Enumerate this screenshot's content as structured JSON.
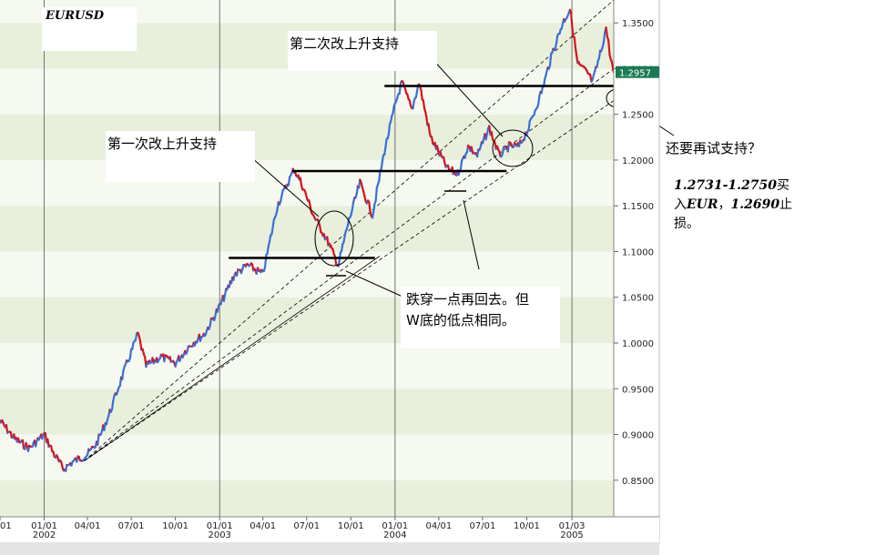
{
  "chart_data": {
    "type": "line",
    "title": "EURUSD",
    "ylim": [
      0.81,
      1.375
    ],
    "xlim": [
      "2001-10-01",
      "2005-03-31"
    ],
    "y_ticks": [
      "1.3500",
      "1.3000",
      "1.2500",
      "1.2000",
      "1.1500",
      "1.1000",
      "1.0500",
      "1.0000",
      "0.9500",
      "0.9000",
      "0.8500"
    ],
    "x_ticks": [
      {
        "label": "01",
        "date": "2001-10-01"
      },
      {
        "label": "01/01",
        "year": "2002",
        "date": "2002-01-01"
      },
      {
        "label": "04/01",
        "date": "2002-04-01"
      },
      {
        "label": "07/01",
        "date": "2002-07-01"
      },
      {
        "label": "10/01",
        "date": "2002-10-01"
      },
      {
        "label": "01/01",
        "year": "2003",
        "date": "2003-01-01"
      },
      {
        "label": "04/01",
        "date": "2003-04-01"
      },
      {
        "label": "07/01",
        "date": "2003-07-01"
      },
      {
        "label": "10/01",
        "date": "2003-10-01"
      },
      {
        "label": "01/01",
        "year": "2004",
        "date": "2004-01-01"
      },
      {
        "label": "04/01",
        "date": "2004-04-01"
      },
      {
        "label": "07/01",
        "date": "2004-07-01"
      },
      {
        "label": "10/01",
        "date": "2004-10-01"
      },
      {
        "label": "01/03",
        "year": "2005",
        "date": "2005-01-03"
      }
    ],
    "series": [
      {
        "color": "#d8121c",
        "points": [
          [
            "2001-10-01",
            0.915
          ],
          [
            "2001-11-01",
            0.895
          ],
          [
            "2001-12-01",
            0.885
          ],
          [
            "2002-01-01",
            0.9
          ],
          [
            "2002-01-20",
            0.88
          ],
          [
            "2002-02-10",
            0.862
          ],
          [
            "2002-03-01",
            0.87
          ],
          [
            "2002-04-01",
            0.878
          ],
          [
            "2002-04-20",
            0.89
          ],
          [
            "2002-05-15",
            0.92
          ],
          [
            "2002-06-10",
            0.96
          ],
          [
            "2002-07-01",
            0.99
          ],
          [
            "2002-07-15",
            1.01
          ],
          [
            "2002-08-01",
            0.975
          ],
          [
            "2002-09-01",
            0.985
          ],
          [
            "2002-10-01",
            0.978
          ],
          [
            "2002-11-01",
            0.998
          ],
          [
            "2002-12-01",
            1.01
          ],
          [
            "2003-01-01",
            1.04
          ],
          [
            "2003-02-01",
            1.075
          ],
          [
            "2003-03-01",
            1.085
          ],
          [
            "2003-04-01",
            1.075
          ],
          [
            "2003-05-01",
            1.15
          ],
          [
            "2003-06-05",
            1.19
          ],
          [
            "2003-06-20",
            1.175
          ],
          [
            "2003-07-15",
            1.14
          ],
          [
            "2003-08-15",
            1.11
          ],
          [
            "2003-09-05",
            1.085
          ],
          [
            "2003-09-25",
            1.13
          ],
          [
            "2003-10-20",
            1.175
          ],
          [
            "2003-11-15",
            1.14
          ],
          [
            "2003-12-10",
            1.21
          ],
          [
            "2004-01-01",
            1.26
          ],
          [
            "2004-01-15",
            1.285
          ],
          [
            "2004-02-05",
            1.255
          ],
          [
            "2004-02-20",
            1.285
          ],
          [
            "2004-03-15",
            1.225
          ],
          [
            "2004-04-20",
            1.19
          ],
          [
            "2004-05-10",
            1.185
          ],
          [
            "2004-06-01",
            1.215
          ],
          [
            "2004-06-20",
            1.205
          ],
          [
            "2004-07-15",
            1.235
          ],
          [
            "2004-08-05",
            1.205
          ],
          [
            "2004-08-25",
            1.215
          ],
          [
            "2004-09-15",
            1.215
          ],
          [
            "2004-10-05",
            1.235
          ],
          [
            "2004-11-01",
            1.275
          ],
          [
            "2004-11-25",
            1.32
          ],
          [
            "2004-12-15",
            1.35
          ],
          [
            "2004-12-30",
            1.365
          ],
          [
            "2005-01-15",
            1.305
          ],
          [
            "2005-02-05",
            1.295
          ],
          [
            "2005-02-15",
            1.285
          ],
          [
            "2005-03-05",
            1.32
          ],
          [
            "2005-03-15",
            1.345
          ],
          [
            "2005-03-25",
            1.31
          ],
          [
            "2005-03-31",
            1.296
          ]
        ]
      }
    ],
    "price_label": "1.2957",
    "annotations": [
      "第一次改上升支持",
      "第二次改上升支持",
      "跌穿一点再回去。但",
      "W底的低点相同。",
      "还要再试支持？",
      "1.2731-1.2750",
      "买",
      "入",
      "EUR",
      "，",
      "1.2690",
      "止",
      "损。"
    ],
    "horizontal_supports": [
      {
        "from": "2003-01-20",
        "to": "2003-11-20",
        "y": 1.093
      },
      {
        "from": "2003-06-01",
        "to": "2004-08-20",
        "y": 1.188
      },
      {
        "from": "2003-12-10",
        "to": "2005-03-31",
        "y": 1.281
      }
    ],
    "trendlines": [
      {
        "from": [
          "2002-03-25",
          0.871
        ],
        "to": [
          "2003-11-30",
          1.095
        ],
        "style": "solid"
      },
      {
        "from": [
          "2002-03-25",
          0.871
        ],
        "to": [
          "2005-03-31",
          1.265
        ],
        "style": "dashed"
      },
      {
        "from": [
          "2002-03-25",
          0.871
        ],
        "to": [
          "2005-03-31",
          1.3
        ],
        "style": "dashed"
      },
      {
        "from": [
          "2002-03-25",
          0.871
        ],
        "to": [
          "2005-03-31",
          1.375
        ],
        "style": "dashed"
      }
    ],
    "grid": true
  },
  "colors": {
    "band_dark": "#e8f0dc",
    "band_light": "#f5f9ef",
    "price_label_bg": "#1b7a52",
    "price_up": "#3a6fd8",
    "price_down": "#d8121c"
  }
}
